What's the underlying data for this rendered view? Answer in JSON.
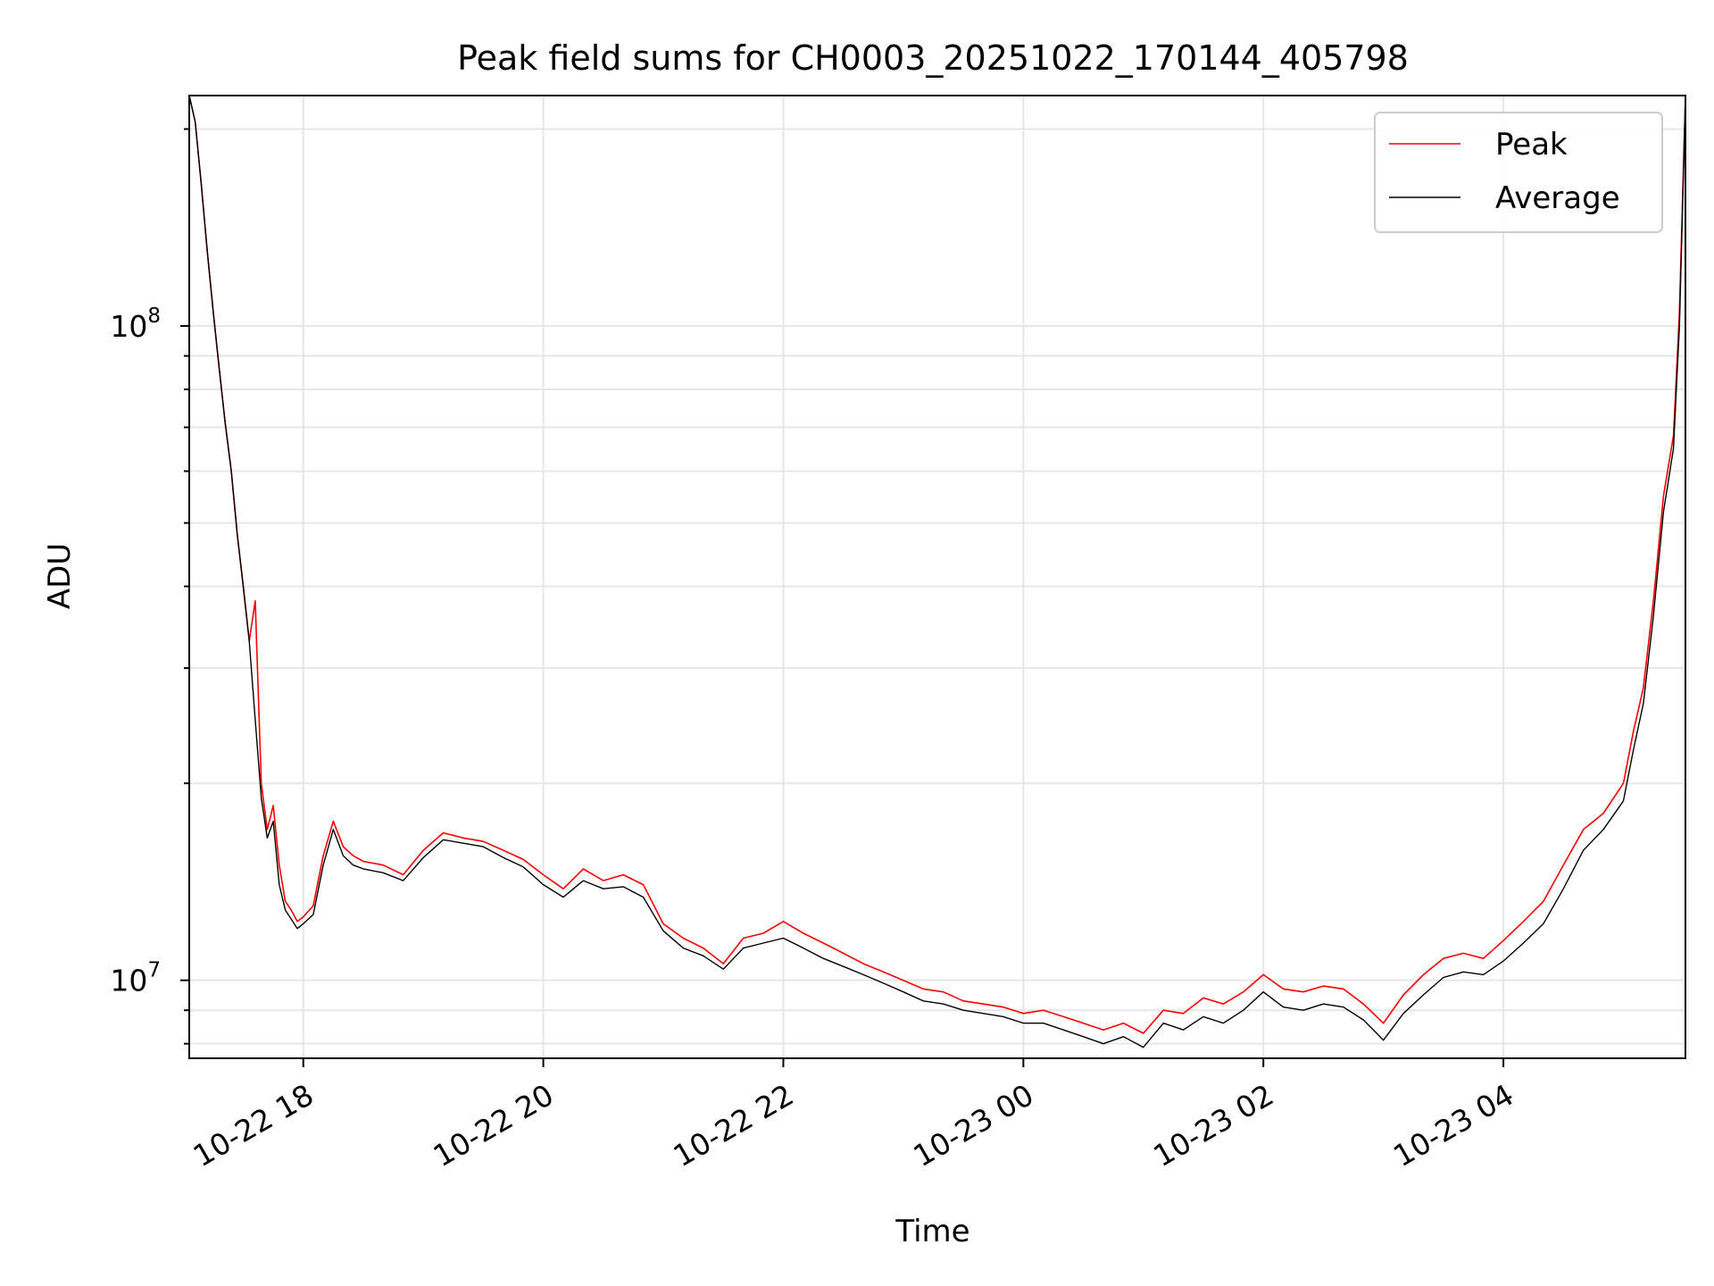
{
  "chart_data": {
    "type": "line",
    "title": "Peak field sums for CH0003_20251022_170144_405798",
    "xlabel": "Time",
    "ylabel": "ADU",
    "xscale": "time",
    "yscale": "log",
    "xlim": [
      "2025-10-22 17:03",
      "2025-10-23 05:31"
    ],
    "ylim": [
      7600000,
      225000000
    ],
    "grid": true,
    "legend_position": "top-right",
    "x_ticks": [
      "2025-10-22 18:00",
      "2025-10-22 20:00",
      "2025-10-22 22:00",
      "2025-10-23 00:00",
      "2025-10-23 02:00",
      "2025-10-23 04:00"
    ],
    "x_tick_labels": [
      "10-22 18",
      "10-22 20",
      "10-22 22",
      "10-23 00",
      "10-23 02",
      "10-23 04"
    ],
    "y_major_ticks": [
      10000000,
      100000000
    ],
    "y_major_tick_labels": [
      {
        "base": "10",
        "exp": "7"
      },
      {
        "base": "10",
        "exp": "8"
      }
    ],
    "x": [
      "2025-10-22 17:03",
      "2025-10-22 17:06",
      "2025-10-22 17:09",
      "2025-10-22 17:12",
      "2025-10-22 17:15",
      "2025-10-22 17:18",
      "2025-10-22 17:21",
      "2025-10-22 17:24",
      "2025-10-22 17:27",
      "2025-10-22 17:30",
      "2025-10-22 17:33",
      "2025-10-22 17:36",
      "2025-10-22 17:39",
      "2025-10-22 17:42",
      "2025-10-22 17:45",
      "2025-10-22 17:48",
      "2025-10-22 17:51",
      "2025-10-22 17:54",
      "2025-10-22 17:57",
      "2025-10-22 18:00",
      "2025-10-22 18:05",
      "2025-10-22 18:10",
      "2025-10-22 18:15",
      "2025-10-22 18:20",
      "2025-10-22 18:25",
      "2025-10-22 18:30",
      "2025-10-22 18:40",
      "2025-10-22 18:50",
      "2025-10-22 19:00",
      "2025-10-22 19:10",
      "2025-10-22 19:20",
      "2025-10-22 19:30",
      "2025-10-22 19:40",
      "2025-10-22 19:50",
      "2025-10-22 20:00",
      "2025-10-22 20:10",
      "2025-10-22 20:20",
      "2025-10-22 20:30",
      "2025-10-22 20:40",
      "2025-10-22 20:50",
      "2025-10-22 21:00",
      "2025-10-22 21:10",
      "2025-10-22 21:20",
      "2025-10-22 21:30",
      "2025-10-22 21:40",
      "2025-10-22 21:50",
      "2025-10-22 22:00",
      "2025-10-22 22:10",
      "2025-10-22 22:20",
      "2025-10-22 22:30",
      "2025-10-22 22:40",
      "2025-10-22 22:50",
      "2025-10-22 23:00",
      "2025-10-22 23:10",
      "2025-10-22 23:20",
      "2025-10-22 23:30",
      "2025-10-22 23:40",
      "2025-10-22 23:50",
      "2025-10-23 00:00",
      "2025-10-23 00:10",
      "2025-10-23 00:20",
      "2025-10-23 00:30",
      "2025-10-23 00:40",
      "2025-10-23 00:50",
      "2025-10-23 01:00",
      "2025-10-23 01:10",
      "2025-10-23 01:20",
      "2025-10-23 01:30",
      "2025-10-23 01:40",
      "2025-10-23 01:50",
      "2025-10-23 02:00",
      "2025-10-23 02:10",
      "2025-10-23 02:20",
      "2025-10-23 02:30",
      "2025-10-23 02:40",
      "2025-10-23 02:50",
      "2025-10-23 03:00",
      "2025-10-23 03:10",
      "2025-10-23 03:20",
      "2025-10-23 03:30",
      "2025-10-23 03:40",
      "2025-10-23 03:50",
      "2025-10-23 04:00",
      "2025-10-23 04:10",
      "2025-10-23 04:20",
      "2025-10-23 04:30",
      "2025-10-23 04:40",
      "2025-10-23 04:50",
      "2025-10-23 05:00",
      "2025-10-23 05:05",
      "2025-10-23 05:10",
      "2025-10-23 05:15",
      "2025-10-23 05:20",
      "2025-10-23 05:25",
      "2025-10-23 05:28",
      "2025-10-23 05:31"
    ],
    "series": [
      {
        "name": "Peak",
        "color": "#ff0000",
        "values": [
          225000000,
          205000000,
          165000000,
          130000000,
          105000000,
          86000000,
          71000000,
          60000000,
          48000000,
          40000000,
          33000000,
          38000000,
          20000000,
          17000000,
          18500000,
          15000000,
          13200000,
          12800000,
          12300000,
          12500000,
          13000000,
          15500000,
          17500000,
          16000000,
          15500000,
          15200000,
          15000000,
          14500000,
          15800000,
          16800000,
          16500000,
          16300000,
          15800000,
          15300000,
          14500000,
          13800000,
          14800000,
          14200000,
          14500000,
          14000000,
          12200000,
          11600000,
          11200000,
          10600000,
          11600000,
          11800000,
          12300000,
          11800000,
          11400000,
          11000000,
          10600000,
          10300000,
          10000000,
          9700000,
          9600000,
          9300000,
          9200000,
          9100000,
          8900000,
          9000000,
          8800000,
          8600000,
          8400000,
          8600000,
          8300000,
          9000000,
          8900000,
          9400000,
          9200000,
          9600000,
          10200000,
          9700000,
          9600000,
          9800000,
          9700000,
          9200000,
          8600000,
          9500000,
          10200000,
          10800000,
          11000000,
          10800000,
          11500000,
          12300000,
          13200000,
          15000000,
          17000000,
          18000000,
          20000000,
          24000000,
          28000000,
          38000000,
          55000000,
          68000000,
          105000000,
          225000000
        ]
      },
      {
        "name": "Average",
        "color": "#000000",
        "values": [
          225000000,
          205000000,
          165000000,
          130000000,
          105000000,
          86000000,
          71000000,
          60000000,
          48000000,
          40000000,
          33000000,
          25000000,
          19000000,
          16500000,
          17500000,
          14000000,
          12800000,
          12400000,
          12000000,
          12200000,
          12600000,
          15000000,
          17000000,
          15500000,
          15000000,
          14800000,
          14600000,
          14200000,
          15400000,
          16400000,
          16200000,
          16000000,
          15400000,
          14900000,
          14000000,
          13400000,
          14200000,
          13800000,
          13900000,
          13400000,
          11900000,
          11200000,
          10900000,
          10400000,
          11200000,
          11400000,
          11600000,
          11200000,
          10800000,
          10500000,
          10200000,
          9900000,
          9600000,
          9300000,
          9200000,
          9000000,
          8900000,
          8800000,
          8600000,
          8600000,
          8400000,
          8200000,
          8000000,
          8200000,
          7900000,
          8600000,
          8400000,
          8800000,
          8600000,
          9000000,
          9600000,
          9100000,
          9000000,
          9200000,
          9100000,
          8700000,
          8100000,
          8900000,
          9500000,
          10100000,
          10300000,
          10200000,
          10700000,
          11400000,
          12200000,
          13800000,
          15800000,
          17000000,
          18800000,
          22500000,
          26500000,
          36000000,
          52000000,
          65000000,
          100000000,
          225000000
        ]
      }
    ]
  }
}
